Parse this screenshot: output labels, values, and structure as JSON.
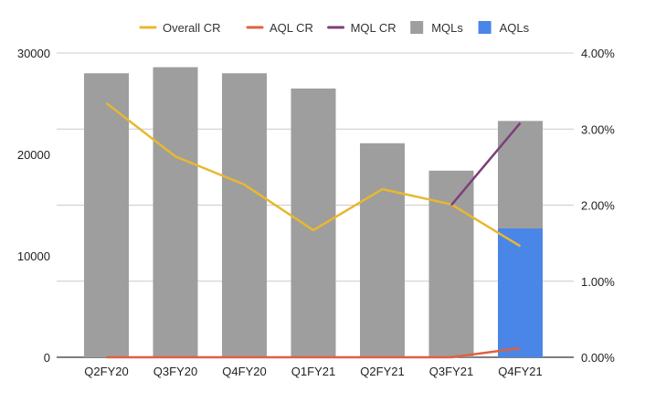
{
  "chart_data": {
    "type": "bar",
    "categories": [
      "Q2FY20",
      "Q3FY20",
      "Q4FY20",
      "Q1FY21",
      "Q2FY21",
      "Q3FY21",
      "Q4FY21"
    ],
    "series": [
      {
        "name": "MQLs",
        "kind": "bar",
        "axis": "left",
        "color": "#9e9e9e",
        "values": [
          28000,
          28600,
          28000,
          26500,
          21100,
          18400,
          23300
        ]
      },
      {
        "name": "AQLs",
        "kind": "bar",
        "axis": "left",
        "color": "#4a86e8",
        "values": [
          0,
          0,
          0,
          0,
          0,
          0,
          12700
        ]
      },
      {
        "name": "Overall CR",
        "kind": "line",
        "axis": "right",
        "color": "#e8b82e",
        "values": [
          3.34,
          2.64,
          2.27,
          1.67,
          2.21,
          2.01,
          1.46
        ]
      },
      {
        "name": "AQL CR",
        "kind": "line",
        "axis": "right",
        "color": "#e06040",
        "values": [
          0.0,
          0.0,
          0.0,
          0.0,
          0.0,
          0.0,
          0.12
        ]
      },
      {
        "name": "MQL CR",
        "kind": "line",
        "axis": "right",
        "color": "#7b3f7a",
        "values": [
          null,
          null,
          null,
          null,
          null,
          2.0,
          3.08
        ]
      }
    ],
    "legend": {
      "placement": "top",
      "entries": [
        {
          "name": "Overall CR",
          "symbol": "line",
          "color": "#e8b82e"
        },
        {
          "name": "AQL CR",
          "symbol": "line",
          "color": "#e06040"
        },
        {
          "name": "MQL CR",
          "symbol": "line",
          "color": "#7b3f7a"
        },
        {
          "name": "MQLs",
          "symbol": "box",
          "color": "#9e9e9e"
        },
        {
          "name": "AQLs",
          "symbol": "box",
          "color": "#4a86e8"
        }
      ]
    },
    "y_left": {
      "ticks": [
        "0",
        "10000",
        "20000",
        "30000"
      ],
      "tick_values": [
        0,
        10000,
        20000,
        30000
      ],
      "ylim": [
        0,
        30000
      ]
    },
    "y_right": {
      "ticks": [
        "0.00%",
        "1.00%",
        "2.00%",
        "3.00%",
        "4.00%"
      ],
      "tick_values": [
        0,
        1,
        2,
        3,
        4
      ],
      "ylim": [
        0,
        4
      ],
      "unit": "%"
    },
    "grid": true,
    "title": "",
    "xlabel": "",
    "ylabel": ""
  }
}
